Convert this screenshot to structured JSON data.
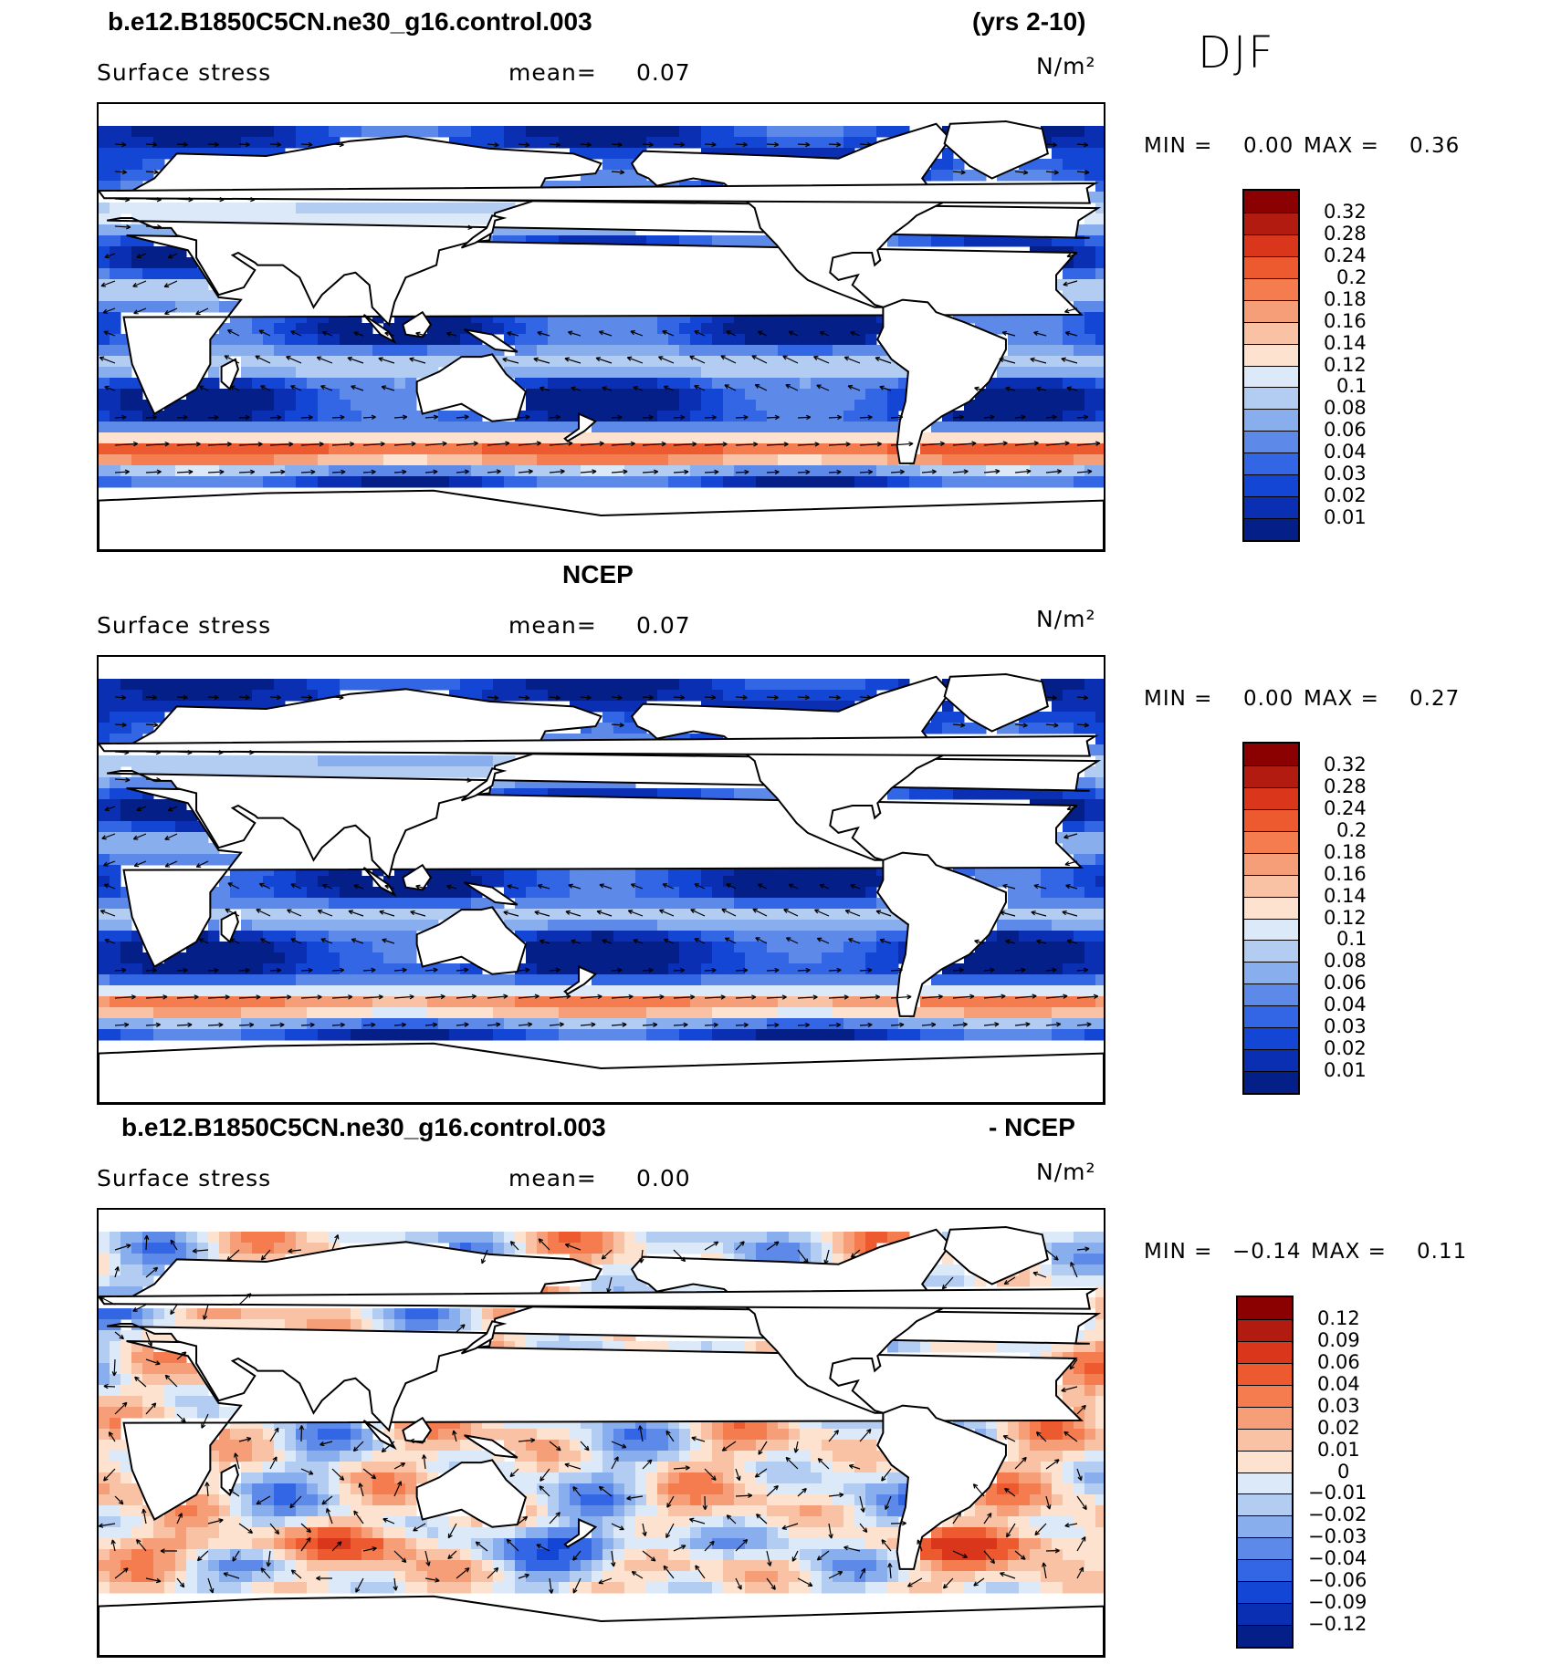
{
  "header": {
    "case_name": "b.e12.B1850C5CN.ne30_g16.control.003",
    "years": "(yrs 2-10)",
    "season": "DJF"
  },
  "panels": [
    {
      "id": "model",
      "title_left": "",
      "title_center": "",
      "variable": "Surface stress",
      "mean_label": "mean=",
      "mean_value": "0.07",
      "units": "N/m²",
      "min_label": "MIN =",
      "min_value": "0.00",
      "max_label": "MAX =",
      "max_value": "0.36",
      "field_type": "magnitude"
    },
    {
      "id": "obs",
      "title_center": "NCEP",
      "variable": "Surface stress",
      "mean_label": "mean=",
      "mean_value": "0.07",
      "units": "N/m²",
      "min_label": "MIN =",
      "min_value": "0.00",
      "max_label": "MAX =",
      "max_value": "0.27",
      "field_type": "magnitude"
    },
    {
      "id": "diff",
      "title_left": "b.e12.B1850C5CN.ne30_g16.control.003",
      "title_right": "- NCEP",
      "variable": "Surface stress",
      "mean_label": "mean=",
      "mean_value": "0.00",
      "units": "N/m²",
      "min_label": "MIN =",
      "min_value": "−0.14",
      "max_label": "MAX =",
      "max_value": "0.11",
      "field_type": "difference"
    }
  ],
  "chart_data": [
    {
      "type": "heatmap",
      "title": "b.e12.B1850C5CN.ne30_g16.control.003 (yrs 2-10)",
      "subtitle": "Surface stress",
      "units": "N/m²",
      "mean": 0.07,
      "min": 0.0,
      "max": 0.36,
      "colorbar_levels": [
        "0.32",
        "0.28",
        "0.24",
        "0.2",
        "0.18",
        "0.16",
        "0.14",
        "0.12",
        "0.1",
        "0.08",
        "0.06",
        "0.04",
        "0.03",
        "0.02",
        "0.01"
      ],
      "colorbar_colors": [
        "#8b0000",
        "#b11b10",
        "#d9361c",
        "#ee5a30",
        "#f47c4f",
        "#f69e78",
        "#f9c2a4",
        "#fde3cf",
        "#dbe9f8",
        "#b3cdf2",
        "#89aeee",
        "#5d8ae9",
        "#3366e5",
        "#1446d6",
        "#0b2fb3",
        "#041f87"
      ]
    },
    {
      "type": "heatmap",
      "title": "NCEP",
      "subtitle": "Surface stress",
      "units": "N/m²",
      "mean": 0.07,
      "min": 0.0,
      "max": 0.27,
      "colorbar_levels": [
        "0.32",
        "0.28",
        "0.24",
        "0.2",
        "0.18",
        "0.16",
        "0.14",
        "0.12",
        "0.1",
        "0.08",
        "0.06",
        "0.04",
        "0.03",
        "0.02",
        "0.01"
      ],
      "colorbar_colors": [
        "#8b0000",
        "#b11b10",
        "#d9361c",
        "#ee5a30",
        "#f47c4f",
        "#f69e78",
        "#f9c2a4",
        "#fde3cf",
        "#dbe9f8",
        "#b3cdf2",
        "#89aeee",
        "#5d8ae9",
        "#3366e5",
        "#1446d6",
        "#0b2fb3",
        "#041f87"
      ]
    },
    {
      "type": "heatmap",
      "title": "b.e12.B1850C5CN.ne30_g16.control.003 - NCEP",
      "subtitle": "Surface stress",
      "units": "N/m²",
      "mean": 0.0,
      "min": -0.14,
      "max": 0.11,
      "colorbar_levels": [
        "0.12",
        "0.09",
        "0.06",
        "0.04",
        "0.03",
        "0.02",
        "0.01",
        "0",
        "−0.01",
        "−0.02",
        "−0.03",
        "−0.04",
        "−0.06",
        "−0.09",
        "−0.12"
      ],
      "colorbar_colors": [
        "#8b0000",
        "#b11b10",
        "#d9361c",
        "#ee5a30",
        "#f47c4f",
        "#f69e78",
        "#f9c2a4",
        "#fde3cf",
        "#dbe9f8",
        "#b3cdf2",
        "#89aeee",
        "#5d8ae9",
        "#3366e5",
        "#1446d6",
        "#0b2fb3",
        "#041f87"
      ]
    }
  ]
}
